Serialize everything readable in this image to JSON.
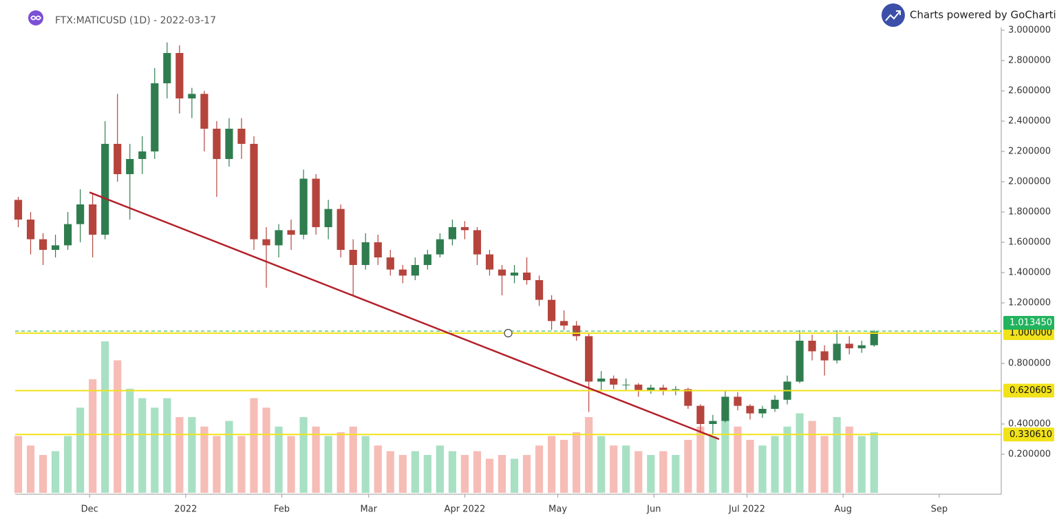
{
  "header": {
    "symbol": "FTX:MATICUSD (1D) - 2022-03-17",
    "brand": "Charts powered by GoCharti"
  },
  "chart_data": {
    "type": "candlestick",
    "x": [
      "2021-11-08",
      "2021-11-12",
      "2021-11-16",
      "2021-11-20",
      "2021-11-24",
      "2021-11-28",
      "2021-12-02",
      "2021-12-06",
      "2021-12-10",
      "2021-12-14",
      "2021-12-18",
      "2021-12-22",
      "2021-12-26",
      "2021-12-30",
      "2022-01-03",
      "2022-01-07",
      "2022-01-11",
      "2022-01-15",
      "2022-01-19",
      "2022-01-23",
      "2022-01-27",
      "2022-01-31",
      "2022-02-04",
      "2022-02-08",
      "2022-02-12",
      "2022-02-16",
      "2022-02-20",
      "2022-02-24",
      "2022-02-28",
      "2022-03-04",
      "2022-03-08",
      "2022-03-12",
      "2022-03-16",
      "2022-03-20",
      "2022-03-24",
      "2022-03-28",
      "2022-04-01",
      "2022-04-05",
      "2022-04-09",
      "2022-04-13",
      "2022-04-17",
      "2022-04-21",
      "2022-04-25",
      "2022-04-29",
      "2022-05-03",
      "2022-05-07",
      "2022-05-11",
      "2022-05-15",
      "2022-05-19",
      "2022-05-23",
      "2022-05-27",
      "2022-05-31",
      "2022-06-04",
      "2022-06-08",
      "2022-06-12",
      "2022-06-16",
      "2022-06-20",
      "2022-06-24",
      "2022-06-28",
      "2022-07-02",
      "2022-07-06",
      "2022-07-10",
      "2022-07-14",
      "2022-07-18",
      "2022-07-22",
      "2022-07-26",
      "2022-07-30",
      "2022-08-03",
      "2022-08-07",
      "2022-08-11"
    ],
    "ohlc": [
      [
        1.88,
        1.9,
        1.7,
        1.75
      ],
      [
        1.75,
        1.8,
        1.52,
        1.62
      ],
      [
        1.62,
        1.66,
        1.45,
        1.55
      ],
      [
        1.55,
        1.65,
        1.5,
        1.58
      ],
      [
        1.58,
        1.8,
        1.55,
        1.72
      ],
      [
        1.72,
        1.95,
        1.6,
        1.85
      ],
      [
        1.85,
        1.92,
        1.5,
        1.65
      ],
      [
        1.65,
        2.4,
        1.62,
        2.25
      ],
      [
        2.25,
        2.58,
        2.0,
        2.05
      ],
      [
        2.05,
        2.25,
        1.75,
        2.15
      ],
      [
        2.15,
        2.3,
        2.05,
        2.2
      ],
      [
        2.2,
        2.75,
        2.15,
        2.65
      ],
      [
        2.65,
        2.92,
        2.55,
        2.85
      ],
      [
        2.85,
        2.9,
        2.45,
        2.55
      ],
      [
        2.55,
        2.62,
        2.42,
        2.58
      ],
      [
        2.58,
        2.6,
        2.2,
        2.35
      ],
      [
        2.35,
        2.4,
        1.9,
        2.15
      ],
      [
        2.15,
        2.42,
        2.1,
        2.35
      ],
      [
        2.35,
        2.42,
        2.15,
        2.25
      ],
      [
        2.25,
        2.3,
        1.55,
        1.62
      ],
      [
        1.62,
        1.7,
        1.3,
        1.58
      ],
      [
        1.58,
        1.72,
        1.5,
        1.68
      ],
      [
        1.68,
        1.75,
        1.55,
        1.65
      ],
      [
        1.65,
        2.08,
        1.62,
        2.02
      ],
      [
        2.02,
        2.05,
        1.65,
        1.7
      ],
      [
        1.7,
        1.88,
        1.62,
        1.82
      ],
      [
        1.82,
        1.85,
        1.5,
        1.55
      ],
      [
        1.55,
        1.62,
        1.25,
        1.45
      ],
      [
        1.45,
        1.66,
        1.42,
        1.6
      ],
      [
        1.6,
        1.65,
        1.45,
        1.5
      ],
      [
        1.5,
        1.55,
        1.38,
        1.42
      ],
      [
        1.42,
        1.45,
        1.33,
        1.38
      ],
      [
        1.38,
        1.5,
        1.35,
        1.45
      ],
      [
        1.45,
        1.55,
        1.42,
        1.52
      ],
      [
        1.52,
        1.66,
        1.5,
        1.62
      ],
      [
        1.62,
        1.75,
        1.58,
        1.7
      ],
      [
        1.7,
        1.74,
        1.62,
        1.68
      ],
      [
        1.68,
        1.7,
        1.45,
        1.52
      ],
      [
        1.52,
        1.55,
        1.38,
        1.42
      ],
      [
        1.42,
        1.45,
        1.25,
        1.38
      ],
      [
        1.38,
        1.45,
        1.33,
        1.4
      ],
      [
        1.4,
        1.5,
        1.32,
        1.35
      ],
      [
        1.35,
        1.38,
        1.18,
        1.22
      ],
      [
        1.22,
        1.25,
        1.02,
        1.08
      ],
      [
        1.08,
        1.15,
        1.02,
        1.05
      ],
      [
        1.05,
        1.08,
        0.95,
        0.98
      ],
      [
        0.98,
        1.0,
        0.48,
        0.68
      ],
      [
        0.68,
        0.75,
        0.62,
        0.7
      ],
      [
        0.7,
        0.72,
        0.63,
        0.66
      ],
      [
        0.66,
        0.7,
        0.62,
        0.66
      ],
      [
        0.66,
        0.67,
        0.58,
        0.62
      ],
      [
        0.62,
        0.66,
        0.6,
        0.64
      ],
      [
        0.64,
        0.66,
        0.59,
        0.62
      ],
      [
        0.62,
        0.65,
        0.59,
        0.63
      ],
      [
        0.63,
        0.64,
        0.5,
        0.52
      ],
      [
        0.52,
        0.53,
        0.34,
        0.4
      ],
      [
        0.4,
        0.46,
        0.33,
        0.42
      ],
      [
        0.42,
        0.62,
        0.41,
        0.58
      ],
      [
        0.58,
        0.61,
        0.49,
        0.52
      ],
      [
        0.52,
        0.53,
        0.43,
        0.47
      ],
      [
        0.47,
        0.52,
        0.44,
        0.5
      ],
      [
        0.5,
        0.59,
        0.48,
        0.56
      ],
      [
        0.56,
        0.72,
        0.53,
        0.68
      ],
      [
        0.68,
        1.02,
        0.67,
        0.95
      ],
      [
        0.95,
        0.99,
        0.82,
        0.88
      ],
      [
        0.88,
        0.92,
        0.72,
        0.82
      ],
      [
        0.82,
        1.02,
        0.8,
        0.93
      ],
      [
        0.93,
        0.98,
        0.86,
        0.9
      ],
      [
        0.9,
        0.95,
        0.87,
        0.92
      ],
      [
        0.92,
        1.02,
        0.91,
        1.01
      ]
    ],
    "volume": [
      30,
      25,
      20,
      22,
      30,
      45,
      60,
      80,
      70,
      55,
      50,
      45,
      50,
      40,
      40,
      35,
      30,
      38,
      30,
      50,
      45,
      35,
      30,
      40,
      35,
      30,
      32,
      35,
      30,
      25,
      22,
      20,
      22,
      20,
      25,
      22,
      20,
      22,
      18,
      20,
      18,
      20,
      25,
      30,
      28,
      32,
      40,
      30,
      25,
      25,
      22,
      20,
      22,
      20,
      28,
      35,
      30,
      45,
      35,
      28,
      25,
      30,
      35,
      42,
      38,
      30,
      40,
      35,
      30,
      32
    ],
    "up_color": "#2f7d4f",
    "down_color": "#b5443c",
    "up_volume_color": "#a8e0c4",
    "down_volume_color": "#f6bcb6",
    "xlim": [
      "2021-11-07",
      "2022-09-21"
    ],
    "xticks": [
      {
        "value": "2021-12-01",
        "label": "Dec"
      },
      {
        "value": "2022-01-01",
        "label": "2022"
      },
      {
        "value": "2022-02-01",
        "label": "Feb"
      },
      {
        "value": "2022-03-01",
        "label": "Mar"
      },
      {
        "value": "2022-04-01",
        "label": "Apr 2022"
      },
      {
        "value": "2022-05-01",
        "label": "May"
      },
      {
        "value": "2022-06-01",
        "label": "Jun"
      },
      {
        "value": "2022-07-01",
        "label": "Jul 2022"
      },
      {
        "value": "2022-08-01",
        "label": "Aug"
      },
      {
        "value": "2022-09-01",
        "label": "Sep"
      }
    ],
    "ylim": [
      0,
      3.1
    ],
    "yticks": [
      {
        "value": 3.0,
        "label": "3.000000"
      },
      {
        "value": 2.8,
        "label": "2.800000"
      },
      {
        "value": 2.6,
        "label": "2.600000"
      },
      {
        "value": 2.4,
        "label": "2.400000"
      },
      {
        "value": 2.2,
        "label": "2.200000"
      },
      {
        "value": 2.0,
        "label": "2.000000"
      },
      {
        "value": 1.8,
        "label": "1.800000"
      },
      {
        "value": 1.6,
        "label": "1.600000"
      },
      {
        "value": 1.4,
        "label": "1.400000"
      },
      {
        "value": 1.2,
        "label": "1.200000"
      },
      {
        "value": 0.8,
        "label": "0.800000"
      },
      {
        "value": 0.4,
        "label": "0.400000"
      },
      {
        "value": 0.2,
        "label": "0.200000"
      }
    ],
    "levels": [
      {
        "value": 1.0,
        "label": "1.000000"
      },
      {
        "value": 0.620605,
        "label": "0.620605"
      },
      {
        "value": 0.33061,
        "label": "0.330610"
      }
    ],
    "level_color": "#f2e21a",
    "last_price": {
      "value": 1.01345,
      "label": "1.013450"
    },
    "last_price_color": "#22b35e",
    "trendline": {
      "x": [
        "2021-12-01",
        "2022-06-22"
      ],
      "y": [
        1.93,
        0.3
      ],
      "color": "#b3202a"
    },
    "marker": {
      "x": "2022-04-15",
      "y": 1.0
    }
  }
}
